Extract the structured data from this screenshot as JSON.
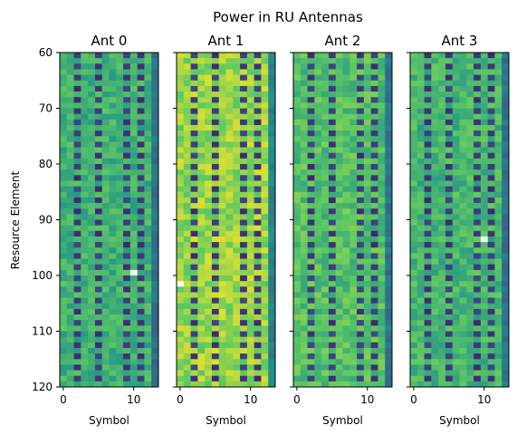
{
  "chart_data": {
    "type": "heatmap",
    "suptitle": "Power in RU Antennas",
    "ylabel": "Resource Element",
    "xlabel": "Symbol",
    "xlim": [
      -0.5,
      13.5
    ],
    "ylim": [
      120,
      60
    ],
    "xticks": [
      "0",
      "10"
    ],
    "yticks": [
      "60",
      "70",
      "80",
      "90",
      "100",
      "110",
      "120"
    ],
    "colormap": [
      "#440154",
      "#3b528b",
      "#21918c",
      "#5ec962",
      "#fde725"
    ],
    "rows": 60,
    "symbols": 14,
    "pilot_symbols": [
      2,
      5,
      9,
      11
    ],
    "panels": [
      {
        "title": "Ant 0",
        "level": 0.64,
        "edge_symbol_level": 0.38,
        "blank": {
          "symbol": 10,
          "row": 99
        }
      },
      {
        "title": "Ant 1",
        "level": 0.84,
        "edge_symbol_level": 0.45,
        "blank": {
          "symbol": 0,
          "row": 101
        }
      },
      {
        "title": "Ant 2",
        "level": 0.7,
        "edge_symbol_level": 0.4,
        "blank": null
      },
      {
        "title": "Ant 3",
        "level": 0.66,
        "edge_symbol_level": 0.38,
        "blank": {
          "symbol": 10,
          "row": 93
        }
      }
    ]
  }
}
